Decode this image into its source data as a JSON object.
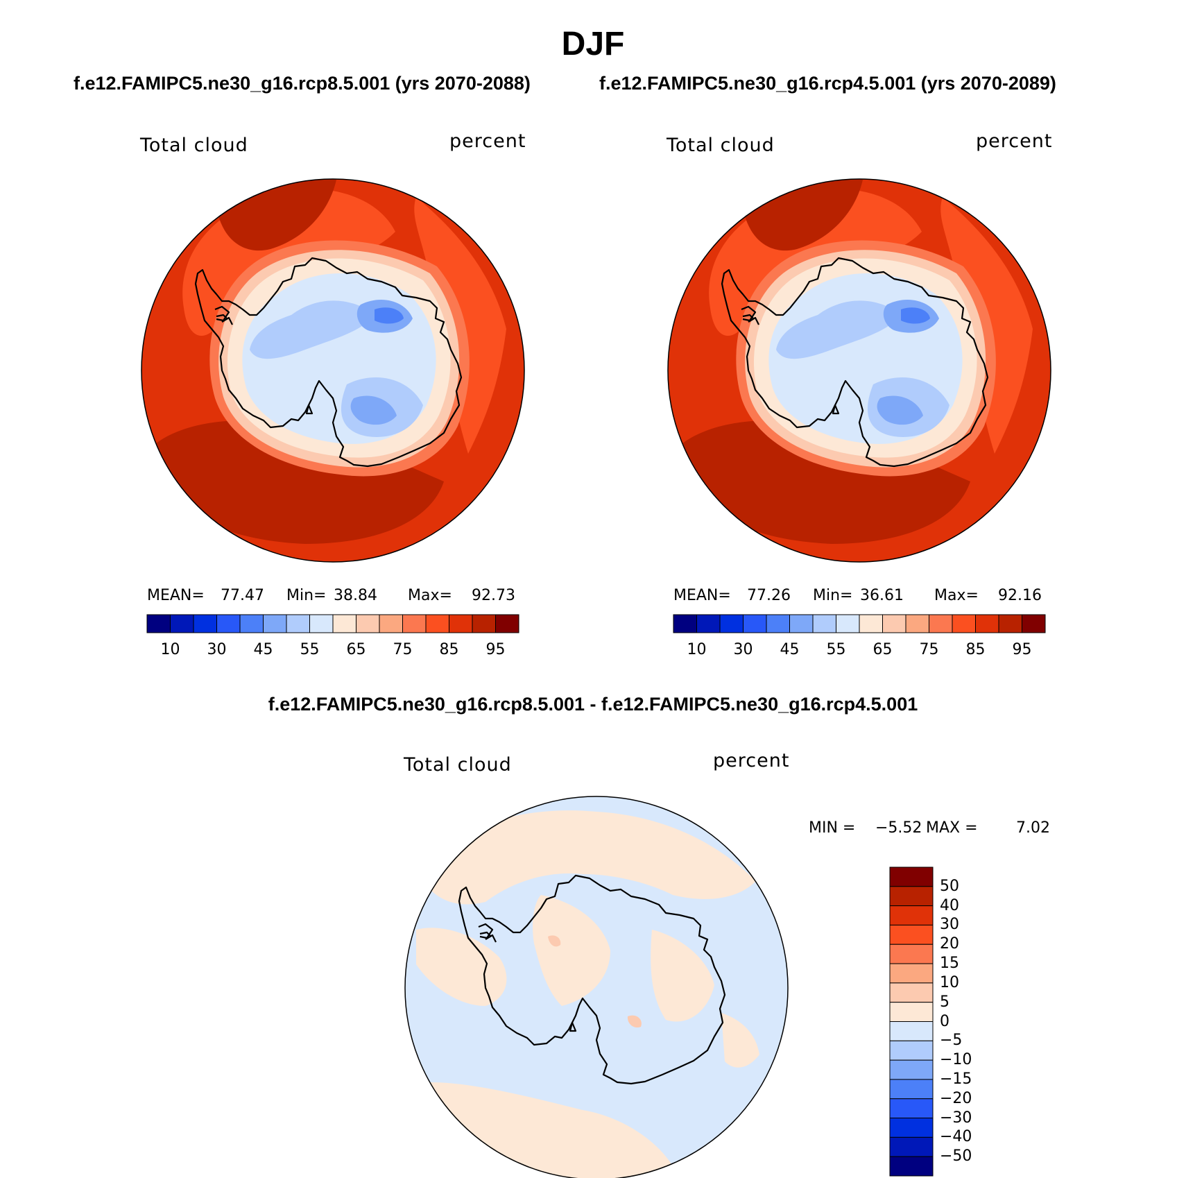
{
  "title": "DJF",
  "left_case": "f.e12.FAMIPC5.ne30_g16.rcp8.5.001 (yrs 2070-2088)",
  "right_case": "f.e12.FAMIPC5.ne30_g16.rcp4.5.001 (yrs 2070-2089)",
  "diff_case": "f.e12.FAMIPC5.ne30_g16.rcp8.5.001 - f.e12.FAMIPC5.ne30_g16.rcp4.5.001",
  "panels": [
    {
      "variable": "Total cloud",
      "units": "percent",
      "mean_label": "MEAN=",
      "mean": "77.47",
      "min_label": "Min=",
      "min": "38.84",
      "max_label": "Max=",
      "max": "92.73"
    },
    {
      "variable": "Total cloud",
      "units": "percent",
      "mean_label": "MEAN=",
      "mean": "77.26",
      "min_label": "Min=",
      "min": "36.61",
      "max_label": "Max=",
      "max": "92.16"
    },
    {
      "variable": "Total cloud",
      "units": "percent",
      "min_label": "MIN =",
      "min": "−5.52",
      "max_label": "MAX =",
      "max": "7.02"
    }
  ],
  "abs_colorbar": {
    "colors": [
      "#000080",
      "#0018b8",
      "#0030e0",
      "#2858f8",
      "#4c80f8",
      "#7ea8f8",
      "#b0ccfc",
      "#d8e8fc",
      "#fde8d6",
      "#fccab0",
      "#fba880",
      "#fb7850",
      "#fb5020",
      "#e03208",
      "#b82200",
      "#800000"
    ],
    "tick_labels": [
      "10",
      "30",
      "45",
      "55",
      "65",
      "75",
      "85",
      "95"
    ]
  },
  "diff_colorbar": {
    "colors": [
      "#800000",
      "#b82200",
      "#e03208",
      "#fb5020",
      "#fb7850",
      "#fba880",
      "#fccab0",
      "#fde8d6",
      "#d8e8fc",
      "#b0ccfc",
      "#7ea8f8",
      "#4c80f8",
      "#2858f8",
      "#0030e0",
      "#0018b8",
      "#000080"
    ],
    "tick_labels": [
      "50",
      "40",
      "30",
      "20",
      "15",
      "10",
      "5",
      "0",
      "−5",
      "−10",
      "−15",
      "−20",
      "−30",
      "−40",
      "−50"
    ]
  }
}
